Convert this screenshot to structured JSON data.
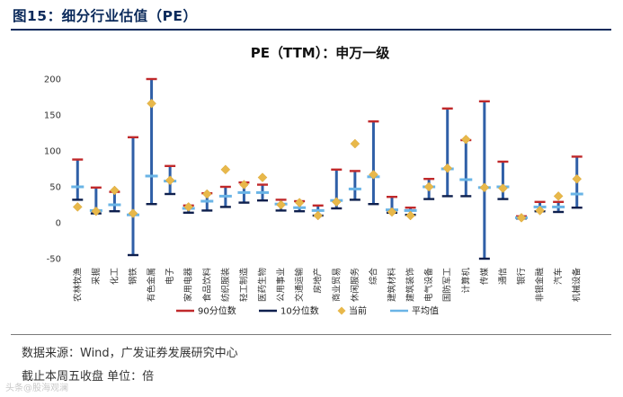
{
  "figure": {
    "title": "图15：细分行业估值（PE）",
    "source": "数据来源：Wind，广发证券发展研究中心",
    "note": "截止本周五收盘 单位：倍",
    "watermark": "头条@股海观澜"
  },
  "colors": {
    "range_bar": "#2f5fa7",
    "p90": "#c0292b",
    "p10": "#0e1f4d",
    "current": "#e8b84a",
    "mean": "#6ab4e6",
    "title_navy": "#0b2a5b"
  },
  "chart_data": {
    "type": "range-marker",
    "title": "PE（TTM）：申万一级",
    "xlabel": "",
    "ylabel": "",
    "ylim": [
      -50,
      200
    ],
    "yticks": [
      -50,
      0,
      50,
      100,
      150,
      200
    ],
    "grid": false,
    "legend_position": "bottom",
    "categories": [
      "农林牧渔",
      "采掘",
      "化工",
      "钢铁",
      "有色金属",
      "电子",
      "家用电器",
      "食品饮料",
      "纺织服装",
      "轻工制造",
      "医药生物",
      "公用事业",
      "交通运输",
      "房地产",
      "商业贸易",
      "休闲服务",
      "综合",
      "建筑材料",
      "建筑装饰",
      "电气设备",
      "国防军工",
      "计算机",
      "传媒",
      "通信",
      "银行",
      "非银金融",
      "汽车",
      "机械设备"
    ],
    "series": [
      {
        "name": "90分位数",
        "values": [
          88,
          49,
          43,
          119,
          200,
          79,
          24,
          41,
          50,
          56,
          53,
          32,
          30,
          24,
          74,
          72,
          141,
          36,
          21,
          61,
          159,
          115,
          169,
          85,
          9,
          29,
          29,
          92
        ]
      },
      {
        "name": "10分位数",
        "values": [
          32,
          13,
          16,
          -45,
          26,
          40,
          14,
          17,
          22,
          28,
          31,
          17,
          16,
          10,
          20,
          32,
          26,
          14,
          11,
          33,
          37,
          37,
          -50,
          33,
          6,
          16,
          15,
          21
        ]
      },
      {
        "name": "当前",
        "values": [
          22,
          16,
          45,
          13,
          166,
          59,
          22,
          40,
          74,
          53,
          63,
          25,
          28,
          10,
          29,
          110,
          67,
          15,
          10,
          50,
          76,
          116,
          49,
          48,
          7,
          17,
          37,
          61
        ]
      },
      {
        "name": "平均值",
        "values": [
          50,
          17,
          25,
          11,
          65,
          58,
          20,
          30,
          37,
          42,
          42,
          26,
          21,
          17,
          31,
          47,
          64,
          18,
          17,
          50,
          75,
          60,
          49,
          50,
          7,
          22,
          22,
          40
        ]
      }
    ]
  }
}
